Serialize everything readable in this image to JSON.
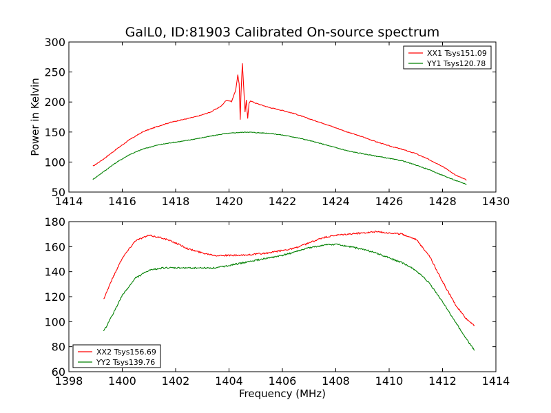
{
  "chart_data": [
    {
      "type": "line",
      "title": "GalL0, ID:81903 Calibrated On-source spectrum",
      "xlabel": "",
      "ylabel": "Power in Kelvin",
      "xlim": [
        1414,
        1430
      ],
      "ylim": [
        50,
        300
      ],
      "xticks": [
        1414,
        1416,
        1418,
        1420,
        1422,
        1424,
        1426,
        1428,
        1430
      ],
      "yticks": [
        50,
        100,
        150,
        200,
        250,
        300
      ],
      "legend_position": "top-right",
      "series": [
        {
          "name": "XX1 Tsys151.09",
          "color": "#ff0000",
          "x": [
            1414.9,
            1415.3,
            1415.8,
            1416.3,
            1416.8,
            1417.3,
            1417.8,
            1418.3,
            1418.8,
            1419.3,
            1419.7,
            1419.9,
            1420.1,
            1420.25,
            1420.33,
            1420.38,
            1420.42,
            1420.45,
            1420.5,
            1420.55,
            1420.6,
            1420.65,
            1420.7,
            1420.75,
            1420.8,
            1421.0,
            1421.5,
            1422.0,
            1422.5,
            1423.0,
            1423.5,
            1424.0,
            1424.5,
            1425.0,
            1425.5,
            1426.0,
            1426.5,
            1427.0,
            1427.5,
            1428.0,
            1428.5,
            1428.9
          ],
          "y": [
            93,
            105,
            122,
            138,
            151,
            159,
            166,
            171,
            176,
            183,
            193,
            203,
            201,
            220,
            245,
            230,
            170,
            215,
            265,
            225,
            183,
            203,
            172,
            198,
            202,
            198,
            191,
            186,
            180,
            172,
            165,
            157,
            149,
            142,
            134,
            127,
            121,
            114,
            104,
            93,
            78,
            70
          ]
        },
        {
          "name": "YY1 Tsys120.78",
          "color": "#008000",
          "x": [
            1414.9,
            1415.3,
            1415.8,
            1416.3,
            1416.8,
            1417.3,
            1417.8,
            1418.3,
            1418.8,
            1419.3,
            1419.8,
            1420.3,
            1420.7,
            1421.0,
            1421.5,
            1422.0,
            1422.5,
            1423.0,
            1423.5,
            1424.0,
            1424.5,
            1425.0,
            1425.5,
            1426.0,
            1426.5,
            1427.0,
            1427.5,
            1428.0,
            1428.5,
            1428.9
          ],
          "y": [
            71,
            84,
            100,
            113,
            122,
            128,
            132,
            135,
            139,
            143,
            147,
            149,
            150,
            149,
            148,
            145,
            141,
            136,
            130,
            124,
            118,
            114,
            110,
            106,
            102,
            95,
            87,
            78,
            69,
            63
          ]
        }
      ]
    },
    {
      "type": "line",
      "title": "",
      "xlabel": "Frequency (MHz)",
      "ylabel": "",
      "xlim": [
        1398,
        1414
      ],
      "ylim": [
        60,
        180
      ],
      "xticks": [
        1398,
        1400,
        1402,
        1404,
        1406,
        1408,
        1410,
        1412,
        1414
      ],
      "yticks": [
        60,
        80,
        100,
        120,
        140,
        160,
        180
      ],
      "legend_position": "bottom-left",
      "series": [
        {
          "name": "XX2 Tsys156.69",
          "color": "#ff0000",
          "x": [
            1399.3,
            1399.6,
            1400.0,
            1400.5,
            1401.0,
            1401.5,
            1402.0,
            1402.5,
            1403.0,
            1403.5,
            1404.0,
            1404.5,
            1405.0,
            1405.5,
            1406.0,
            1406.5,
            1407.0,
            1407.5,
            1408.0,
            1408.5,
            1409.0,
            1409.5,
            1410.0,
            1410.5,
            1411.0,
            1411.5,
            1412.0,
            1412.5,
            1412.9,
            1413.2
          ],
          "y": [
            118,
            133,
            151,
            165,
            169,
            167,
            163,
            158,
            155,
            153,
            153,
            153,
            154,
            155,
            157,
            159,
            163,
            167,
            169,
            170,
            171,
            172,
            171,
            170,
            166,
            153,
            132,
            113,
            102,
            97
          ]
        },
        {
          "name": "YY2 Tsys139.76",
          "color": "#008000",
          "x": [
            1399.3,
            1399.6,
            1400.0,
            1400.5,
            1401.0,
            1401.5,
            1402.0,
            1402.5,
            1403.0,
            1403.5,
            1404.0,
            1404.5,
            1405.0,
            1405.5,
            1406.0,
            1406.5,
            1407.0,
            1407.5,
            1408.0,
            1408.5,
            1409.0,
            1409.5,
            1410.0,
            1410.5,
            1411.0,
            1411.5,
            1412.0,
            1412.5,
            1412.9,
            1413.2
          ],
          "y": [
            92,
            104,
            121,
            135,
            141,
            143,
            143,
            143,
            143,
            143,
            145,
            147,
            149,
            151,
            153,
            156,
            159,
            161,
            162,
            160,
            158,
            155,
            151,
            147,
            141,
            131,
            116,
            99,
            86,
            77
          ]
        }
      ]
    }
  ]
}
